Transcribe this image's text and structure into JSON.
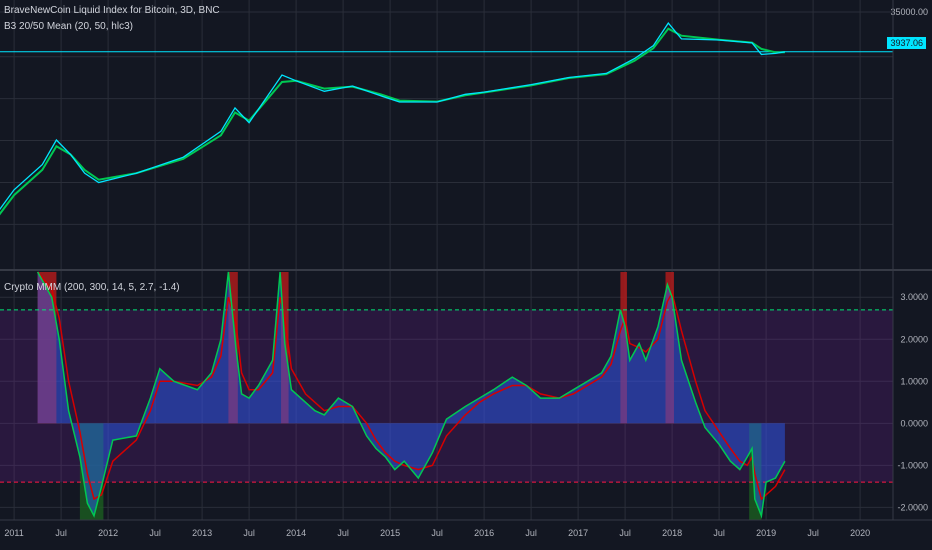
{
  "legend_top_1": "BraveNewCoin Liquid Index for Bitcoin, 3D, BNC",
  "legend_top_2": "B3 20/50 Mean (20, 50, hlc3)",
  "legend_bottom": "Crypto MMM (200, 300, 14, 5, 2.7, -1.4)",
  "price_tag": "3937.06",
  "colors": {
    "background": "#131722",
    "grid": "#2a2e39",
    "price": "#00e5ff",
    "fast": "#00c853",
    "slow": "#d50000",
    "hist": "#2962ff",
    "band": "#7b1fa2",
    "upper": "#00e676",
    "lower": "#ff1744",
    "oversold": "#1b5e20",
    "overbought": "#b71c1c"
  },
  "chart_data": [
    {
      "type": "line",
      "title": "BraveNewCoin Liquid Index for Bitcoin, 3D, BNC",
      "y_axis_ticks": [
        "35000.00"
      ],
      "x_ticks": [
        "2011",
        "Jul",
        "2012",
        "Jul",
        "2013",
        "Jul",
        "2014",
        "Jul",
        "2015",
        "Jul",
        "2016",
        "Jul",
        "2017",
        "Jul",
        "2018",
        "Jul",
        "2019",
        "Jul",
        "2020"
      ],
      "last_price": 3937.06,
      "series": [
        {
          "name": "BraveNewCoin Liquid Index for Bitcoin",
          "x": [
            2010.5,
            2011.0,
            2011.3,
            2011.45,
            2011.6,
            2011.75,
            2011.9,
            2012.3,
            2012.8,
            2013.2,
            2013.35,
            2013.5,
            2013.85,
            2014.0,
            2014.3,
            2014.6,
            2014.9,
            2015.1,
            2015.5,
            2015.8,
            2016.0,
            2016.5,
            2016.9,
            2017.3,
            2017.6,
            2017.8,
            2017.96,
            2018.1,
            2018.5,
            2018.85,
            2018.95,
            2019.1,
            2019.2
          ],
          "y": [
            0.06,
            2.0,
            8.0,
            31.0,
            14.0,
            5.0,
            3.0,
            5.0,
            12.0,
            50.0,
            180.0,
            80.0,
            1100.0,
            800.0,
            450.0,
            600.0,
            350.0,
            250.0,
            250.0,
            380.0,
            430.0,
            650.0,
            960.0,
            1200.0,
            2700.0,
            5500.0,
            19000.0,
            8000.0,
            7500.0,
            6400.0,
            3400.0,
            3600.0,
            3937.06
          ]
        },
        {
          "name": "B3 20/50 Mean",
          "x": [
            2010.5,
            2011.0,
            2011.3,
            2011.45,
            2011.6,
            2011.75,
            2011.9,
            2012.3,
            2012.8,
            2013.2,
            2013.35,
            2013.5,
            2013.85,
            2014.0,
            2014.3,
            2014.6,
            2014.9,
            2015.1,
            2015.5,
            2015.8,
            2016.0,
            2016.5,
            2016.9,
            2017.3,
            2017.6,
            2017.8,
            2017.96,
            2018.1,
            2018.5,
            2018.85,
            2018.95,
            2019.1,
            2019.2
          ],
          "y": [
            0.05,
            1.5,
            6.0,
            22.0,
            14.0,
            6.0,
            3.5,
            5.0,
            11.0,
            40.0,
            140.0,
            90.0,
            750.0,
            800.0,
            520.0,
            580.0,
            380.0,
            270.0,
            255.0,
            360.0,
            420.0,
            620.0,
            930.0,
            1150.0,
            2400.0,
            4800.0,
            14000.0,
            9500.0,
            7600.0,
            6500.0,
            4600.0,
            3800.0,
            3850.0
          ]
        }
      ]
    },
    {
      "type": "area",
      "title": "Crypto MMM (200, 300, 14, 5, 2.7, -1.4)",
      "y_axis_ticks": [
        "3.0000",
        "2.0000",
        "1.0000",
        "0.0000",
        "-1.0000",
        "-2.0000"
      ],
      "ylim": [
        -2.3,
        3.6
      ],
      "upper_threshold": 2.7,
      "lower_threshold": -1.4,
      "x": [
        2011.25,
        2011.4,
        2011.48,
        2011.58,
        2011.7,
        2011.78,
        2011.85,
        2011.93,
        2012.05,
        2012.3,
        2012.45,
        2012.55,
        2012.7,
        2012.95,
        2013.1,
        2013.2,
        2013.28,
        2013.36,
        2013.42,
        2013.5,
        2013.6,
        2013.75,
        2013.83,
        2013.88,
        2013.95,
        2014.1,
        2014.2,
        2014.3,
        2014.45,
        2014.6,
        2014.75,
        2014.85,
        2014.95,
        2015.05,
        2015.15,
        2015.3,
        2015.45,
        2015.6,
        2015.8,
        2015.95,
        2016.1,
        2016.3,
        2016.45,
        2016.6,
        2016.8,
        2016.95,
        2017.1,
        2017.25,
        2017.35,
        2017.45,
        2017.5,
        2017.55,
        2017.65,
        2017.72,
        2017.85,
        2017.95,
        2018.0,
        2018.1,
        2018.25,
        2018.35,
        2018.5,
        2018.62,
        2018.72,
        2018.8,
        2018.85,
        2018.88,
        2018.95,
        2019.0,
        2019.1,
        2019.2
      ],
      "series": [
        {
          "name": "Histogram",
          "values": [
            3.6,
            3.0,
            2.0,
            0.3,
            -0.8,
            -1.9,
            -2.2,
            -1.5,
            -0.4,
            -0.3,
            0.6,
            1.3,
            1.0,
            0.8,
            1.2,
            2.0,
            3.6,
            1.8,
            0.7,
            0.6,
            0.9,
            1.5,
            3.6,
            1.9,
            0.8,
            0.5,
            0.3,
            0.2,
            0.6,
            0.4,
            -0.3,
            -0.6,
            -0.8,
            -1.1,
            -0.9,
            -1.3,
            -0.7,
            0.1,
            0.4,
            0.6,
            0.8,
            1.1,
            0.9,
            0.6,
            0.6,
            0.8,
            1.0,
            1.2,
            1.6,
            2.7,
            2.3,
            1.5,
            1.9,
            1.5,
            2.3,
            3.3,
            3.0,
            1.5,
            0.5,
            -0.1,
            -0.5,
            -0.9,
            -1.1,
            -0.8,
            -0.6,
            -1.8,
            -2.2,
            -1.4,
            -1.3,
            -0.9
          ]
        },
        {
          "name": "Fast",
          "values": [
            3.6,
            3.0,
            2.0,
            0.3,
            -0.8,
            -1.9,
            -2.2,
            -1.5,
            -0.4,
            -0.3,
            0.6,
            1.3,
            1.0,
            0.8,
            1.2,
            2.0,
            3.6,
            1.8,
            0.7,
            0.6,
            0.9,
            1.5,
            3.6,
            1.9,
            0.8,
            0.5,
            0.3,
            0.2,
            0.6,
            0.4,
            -0.3,
            -0.6,
            -0.8,
            -1.1,
            -0.9,
            -1.3,
            -0.7,
            0.1,
            0.4,
            0.6,
            0.8,
            1.1,
            0.9,
            0.6,
            0.6,
            0.8,
            1.0,
            1.2,
            1.6,
            2.7,
            2.3,
            1.5,
            1.9,
            1.5,
            2.3,
            3.3,
            3.0,
            1.5,
            0.5,
            -0.1,
            -0.5,
            -0.9,
            -1.1,
            -0.8,
            -0.6,
            -1.8,
            -2.2,
            -1.4,
            -1.3,
            -0.9
          ]
        },
        {
          "name": "Slow",
          "values": [
            3.6,
            3.2,
            2.5,
            1.0,
            -0.2,
            -1.2,
            -1.8,
            -1.7,
            -0.9,
            -0.4,
            0.3,
            1.0,
            1.0,
            0.9,
            1.1,
            1.6,
            3.0,
            2.4,
            1.2,
            0.8,
            0.8,
            1.2,
            3.0,
            2.5,
            1.3,
            0.7,
            0.5,
            0.3,
            0.4,
            0.4,
            0.0,
            -0.4,
            -0.7,
            -0.9,
            -1.0,
            -1.1,
            -1.0,
            -0.3,
            0.2,
            0.5,
            0.7,
            0.9,
            0.9,
            0.7,
            0.6,
            0.7,
            0.9,
            1.1,
            1.4,
            2.2,
            2.5,
            1.9,
            1.8,
            1.7,
            2.0,
            2.9,
            3.1,
            2.2,
            1.0,
            0.3,
            -0.2,
            -0.6,
            -0.9,
            -1.0,
            -0.8,
            -1.2,
            -1.8,
            -1.7,
            -1.5,
            -1.1
          ]
        }
      ],
      "overbought_zones": [
        [
          2011.25,
          2011.45
        ],
        [
          2013.28,
          2013.38
        ],
        [
          2013.84,
          2013.92
        ],
        [
          2017.45,
          2017.52
        ],
        [
          2017.93,
          2018.02
        ]
      ],
      "oversold_zones": [
        [
          2011.7,
          2011.95
        ],
        [
          2018.82,
          2018.95
        ]
      ]
    }
  ]
}
